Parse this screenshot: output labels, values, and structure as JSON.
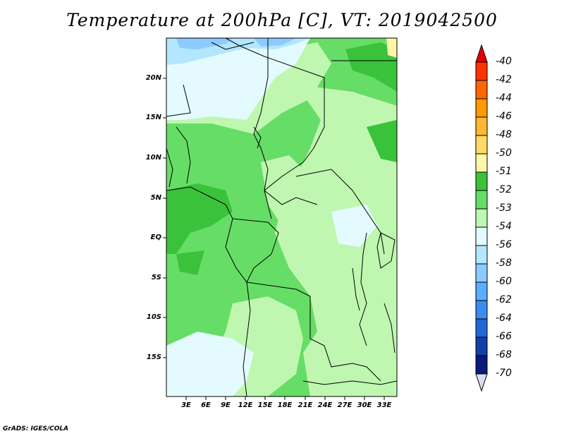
{
  "title": "Temperature at 200hPa [C], VT: 2019042500",
  "credit": "GrADS: IGES/COLA",
  "y_axis_ticks": [
    "20N",
    "15N",
    "10N",
    "5N",
    "EQ",
    "5S",
    "10S",
    "15S"
  ],
  "x_axis_ticks": [
    "3E",
    "6E",
    "9E",
    "12E",
    "15E",
    "18E",
    "21E",
    "24E",
    "27E",
    "30E",
    "33E"
  ],
  "colorbar": {
    "labels": [
      "-40",
      "-42",
      "-44",
      "-46",
      "-48",
      "-50",
      "-51",
      "-52",
      "-53",
      "-54",
      "-56",
      "-58",
      "-60",
      "-62",
      "-64",
      "-66",
      "-68",
      "-70"
    ],
    "colors": [
      "#e60000",
      "#ff3300",
      "#ff6600",
      "#ff9900",
      "#ffb833",
      "#ffd966",
      "#fff7a8",
      "#3ac23a",
      "#66dd66",
      "#bff7b0",
      "#e3fbff",
      "#b4e6ff",
      "#8ccaff",
      "#5aaeff",
      "#3a8cf0",
      "#2466d6",
      "#1040a8",
      "#0a1a78",
      "#dcdcf5"
    ]
  },
  "chart_data": {
    "type": "heatmap",
    "title": "Temperature at 200hPa [C], VT: 2019042500",
    "variable": "Temperature at 200hPa",
    "units": "C",
    "valid_time": "2019042500",
    "lon_range": [
      0,
      35
    ],
    "lat_range": [
      -20,
      25
    ],
    "color_levels": [
      -70,
      -68,
      -66,
      -64,
      -62,
      -60,
      -58,
      -56,
      -54,
      -53,
      -52,
      -51,
      -50,
      -48,
      -46,
      -44,
      -42,
      -40
    ],
    "dominant_values": {
      "north_west_sahara": "-54 to -56",
      "central_africa": "-52 to -54",
      "gulf_of_guinea_coast": "-51 to -52",
      "southern_atlantic_coast": "-54",
      "far_north_east_corner": "-50"
    }
  }
}
